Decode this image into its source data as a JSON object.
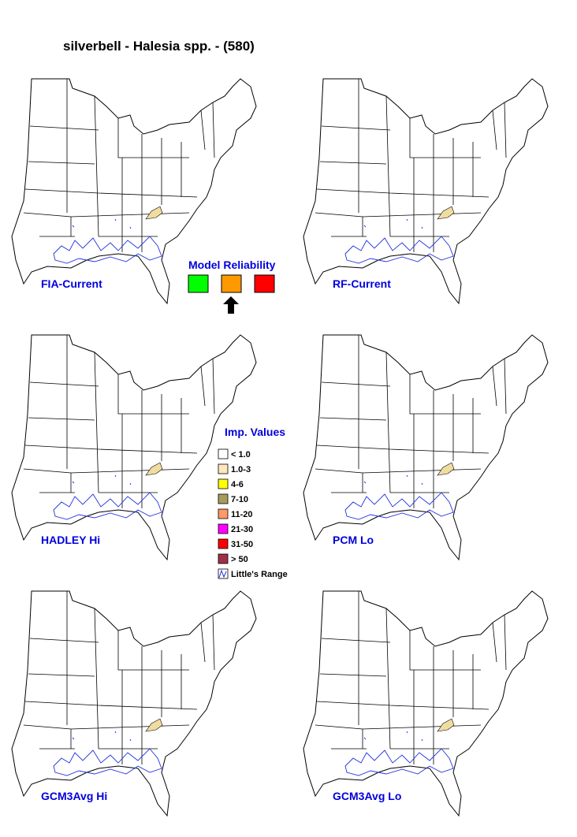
{
  "title": "silverbell - Halesia spp. - (580)",
  "panels": [
    {
      "label": "FIA-Current"
    },
    {
      "label": "RF-Current"
    },
    {
      "label": "HADLEY Hi"
    },
    {
      "label": "PCM Lo"
    },
    {
      "label": "GCM3Avg Hi"
    },
    {
      "label": "GCM3Avg Lo"
    }
  ],
  "model_reliability": {
    "title": "Model Reliability",
    "colors": [
      "#00ff00",
      "#ff9900",
      "#ff0000"
    ],
    "selected": 1
  },
  "imp_values": {
    "title": "Imp. Values",
    "items": [
      {
        "label": "< 1.0",
        "color": "#ffffff"
      },
      {
        "label": "1.0-3",
        "color": "#ffe6bf"
      },
      {
        "label": "4-6",
        "color": "#ffff00"
      },
      {
        "label": "7-10",
        "color": "#a89c5c"
      },
      {
        "label": "11-20",
        "color": "#ff9966"
      },
      {
        "label": "21-30",
        "color": "#ff00ff"
      },
      {
        "label": "31-50",
        "color": "#ff0000"
      },
      {
        "label": "> 50",
        "color": "#a0304a"
      }
    ],
    "range_label": "Little's Range"
  }
}
